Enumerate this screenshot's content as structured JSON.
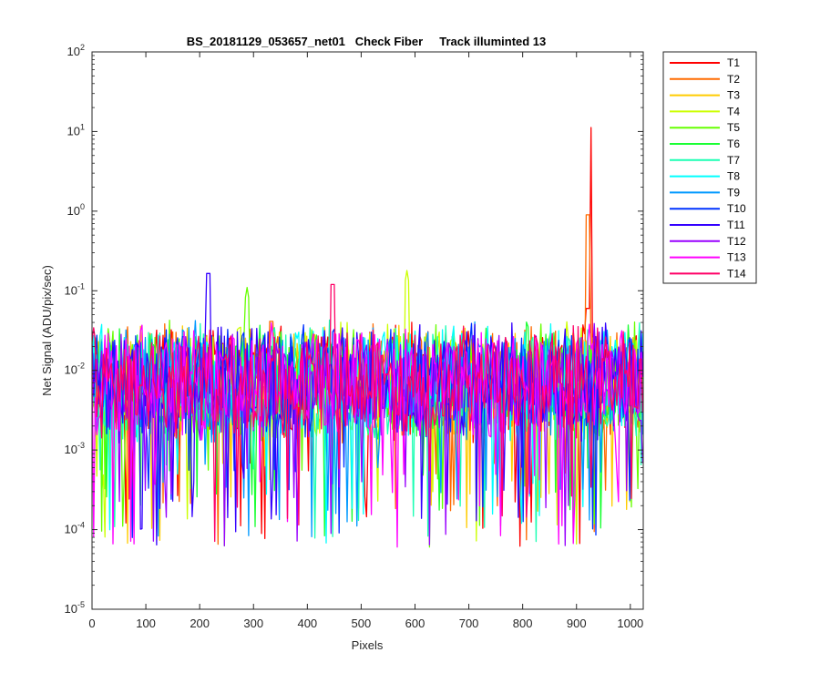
{
  "chart_data": {
    "type": "line",
    "title": "BS_20181129_053657_net01   Check Fiber     Track illuminted 13",
    "xlabel": "Pixels",
    "ylabel": "Net Signal (ADU/pix/sec)",
    "xlim": [
      0,
      1024
    ],
    "ylim": [
      1e-05,
      100
    ],
    "yscale": "log",
    "xticks": [
      "0",
      "100",
      "200",
      "300",
      "400",
      "500",
      "600",
      "700",
      "800",
      "900",
      "1000"
    ],
    "yticks": [
      {
        "base": "10",
        "exp": "-5"
      },
      {
        "base": "10",
        "exp": "-4"
      },
      {
        "base": "10",
        "exp": "-3"
      },
      {
        "base": "10",
        "exp": "-2"
      },
      {
        "base": "10",
        "exp": "-1"
      },
      {
        "base": "10",
        "exp": "0"
      },
      {
        "base": "10",
        "exp": "1"
      },
      {
        "base": "10",
        "exp": "2"
      }
    ],
    "legend_position": "outside-right",
    "noise_band": {
      "x_range": [
        0,
        1024
      ],
      "typical_value_range": [
        0.0007,
        0.03
      ],
      "min_dips": 6e-05
    },
    "series": [
      {
        "name": "T1",
        "color": "#ff0000",
        "peaks": [
          {
            "x": 925,
            "y": 15
          },
          {
            "x": 920,
            "y": 0.08
          }
        ]
      },
      {
        "name": "T2",
        "color": "#ff6a00",
        "peaks": [
          {
            "x": 922,
            "y": 1.2
          },
          {
            "x": 332,
            "y": 0.055
          }
        ]
      },
      {
        "name": "T3",
        "color": "#ffcc00",
        "peaks": []
      },
      {
        "name": "T4",
        "color": "#ccff00",
        "peaks": [
          {
            "x": 585,
            "y": 0.18
          }
        ]
      },
      {
        "name": "T5",
        "color": "#66ff00",
        "peaks": [
          {
            "x": 288,
            "y": 0.11
          }
        ]
      },
      {
        "name": "T6",
        "color": "#1aff33",
        "peaks": []
      },
      {
        "name": "T7",
        "color": "#1affb3",
        "peaks": []
      },
      {
        "name": "T8",
        "color": "#00ffff",
        "peaks": []
      },
      {
        "name": "T9",
        "color": "#0099ff",
        "peaks": []
      },
      {
        "name": "T10",
        "color": "#0033ff",
        "peaks": []
      },
      {
        "name": "T11",
        "color": "#3300ff",
        "peaks": [
          {
            "x": 217,
            "y": 0.22
          }
        ]
      },
      {
        "name": "T12",
        "color": "#9900ff",
        "peaks": []
      },
      {
        "name": "T13",
        "color": "#ff00ff",
        "peaks": []
      },
      {
        "name": "T14",
        "color": "#ff0066",
        "peaks": [
          {
            "x": 448,
            "y": 0.16
          }
        ]
      }
    ]
  }
}
